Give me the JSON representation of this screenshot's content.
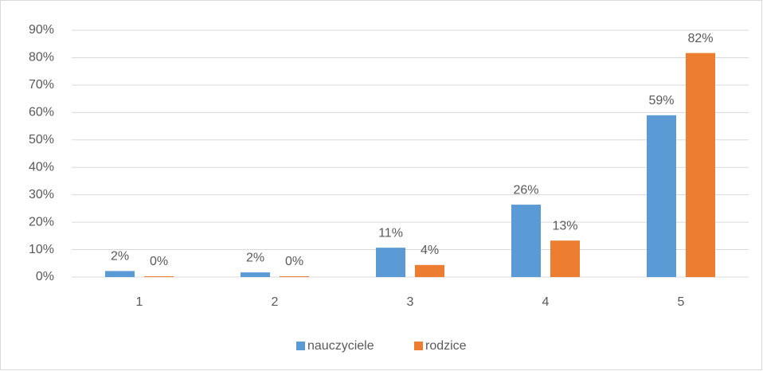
{
  "chart_data": {
    "type": "bar",
    "categories": [
      "1",
      "2",
      "3",
      "4",
      "5"
    ],
    "series": [
      {
        "name": "nauczyciele",
        "color": "#5b9bd5",
        "values": [
          2.2,
          1.7,
          10.7,
          26.4,
          59
        ],
        "value_labels": [
          "2%",
          "2%",
          "11%",
          "26%",
          "59%"
        ]
      },
      {
        "name": "rodzice",
        "color": "#ed7d31",
        "values": [
          0.3,
          0.3,
          4.4,
          13.3,
          81.7
        ],
        "value_labels": [
          "0%",
          "0%",
          "4%",
          "13%",
          "82%"
        ]
      }
    ],
    "ylim": [
      0,
      90
    ],
    "yticks": [
      {
        "value": 0,
        "label": "0%"
      },
      {
        "value": 10,
        "label": "10%"
      },
      {
        "value": 20,
        "label": "20%"
      },
      {
        "value": 30,
        "label": "30%"
      },
      {
        "value": 40,
        "label": "40%"
      },
      {
        "value": 50,
        "label": "50%"
      },
      {
        "value": 60,
        "label": "60%"
      },
      {
        "value": 70,
        "label": "70%"
      },
      {
        "value": 80,
        "label": "80%"
      },
      {
        "value": 90,
        "label": "90%"
      }
    ],
    "grid": true,
    "legend": "bottom"
  }
}
